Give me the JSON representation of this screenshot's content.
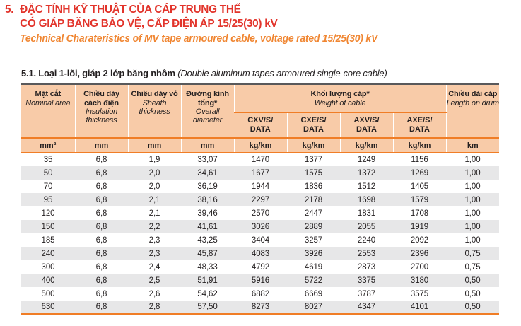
{
  "colors": {
    "title_red": "#e2342b",
    "subtitle_orange": "#f08632",
    "rule_orange": "#f07d26",
    "header_bg": "#f8cba8",
    "stripe_gray": "#e7e7e8",
    "top_border_dark": "#59595b"
  },
  "heading": {
    "number": "5.",
    "line1": "ĐẶC TÍNH KỸ THUẬT CỦA CÁP TRUNG THẾ",
    "line2": "CÓ GIÁP BĂNG BẢO VỆ, CẤP ĐIỆN ÁP 15/25(30) kV",
    "subtitle": "Technical Charateristics of MV tape armoured cable, voltage rated 15/25(30) kV"
  },
  "section": {
    "label_vi": "5.1. Loại 1-lõi, giáp 2 lớp băng nhôm",
    "label_en": " (Double aluminum tapes armoured single-core cable)"
  },
  "table": {
    "columns": [
      {
        "vi": "Mặt cắt",
        "en": "Nominal area"
      },
      {
        "vi": "Chiều dày cách điện",
        "en": "Insulation thickness"
      },
      {
        "vi": "Chiều dày vỏ",
        "en": "Sheath thickness"
      },
      {
        "vi": "Đường kính tổng*",
        "en": "Overall diameter"
      }
    ],
    "weight_group": {
      "vi": "Khối lượng cáp*",
      "en": "Weight of cable",
      "subcolumns": [
        {
          "label": "CXV/S/\nDATA"
        },
        {
          "label": "CXE/S/\nDATA"
        },
        {
          "label": "AXV/S/\nDATA"
        },
        {
          "label": "AXE/S/\nDATA"
        }
      ]
    },
    "length_column": {
      "vi": "Chiều dài cáp",
      "en": "Length on drum"
    },
    "units": [
      "mm²",
      "mm",
      "mm",
      "mm",
      "kg/km",
      "kg/km",
      "kg/km",
      "kg/km",
      "km"
    ],
    "rows": [
      [
        "35",
        "6,8",
        "1,9",
        "33,07",
        "1470",
        "1377",
        "1249",
        "1156",
        "1,00"
      ],
      [
        "50",
        "6,8",
        "2,0",
        "34,61",
        "1677",
        "1575",
        "1372",
        "1269",
        "1,00"
      ],
      [
        "70",
        "6,8",
        "2,0",
        "36,19",
        "1944",
        "1836",
        "1512",
        "1405",
        "1,00"
      ],
      [
        "95",
        "6,8",
        "2,1",
        "38,16",
        "2297",
        "2178",
        "1698",
        "1579",
        "1,00"
      ],
      [
        "120",
        "6,8",
        "2,1",
        "39,46",
        "2570",
        "2447",
        "1831",
        "1708",
        "1,00"
      ],
      [
        "150",
        "6,8",
        "2,2",
        "41,61",
        "3026",
        "2889",
        "2055",
        "1919",
        "1,00"
      ],
      [
        "185",
        "6,8",
        "2,3",
        "43,25",
        "3404",
        "3257",
        "2240",
        "2092",
        "1,00"
      ],
      [
        "240",
        "6,8",
        "2,3",
        "45,87",
        "4083",
        "3926",
        "2553",
        "2396",
        "0,75"
      ],
      [
        "300",
        "6,8",
        "2,4",
        "48,33",
        "4792",
        "4619",
        "2873",
        "2700",
        "0,75"
      ],
      [
        "400",
        "6,8",
        "2,5",
        "51,91",
        "5916",
        "5722",
        "3375",
        "3180",
        "0,50"
      ],
      [
        "500",
        "6,8",
        "2,6",
        "54,62",
        "6882",
        "6669",
        "3787",
        "3575",
        "0,50"
      ],
      [
        "630",
        "6,8",
        "2,8",
        "57,50",
        "8273",
        "8027",
        "4347",
        "4101",
        "0,50"
      ]
    ]
  }
}
